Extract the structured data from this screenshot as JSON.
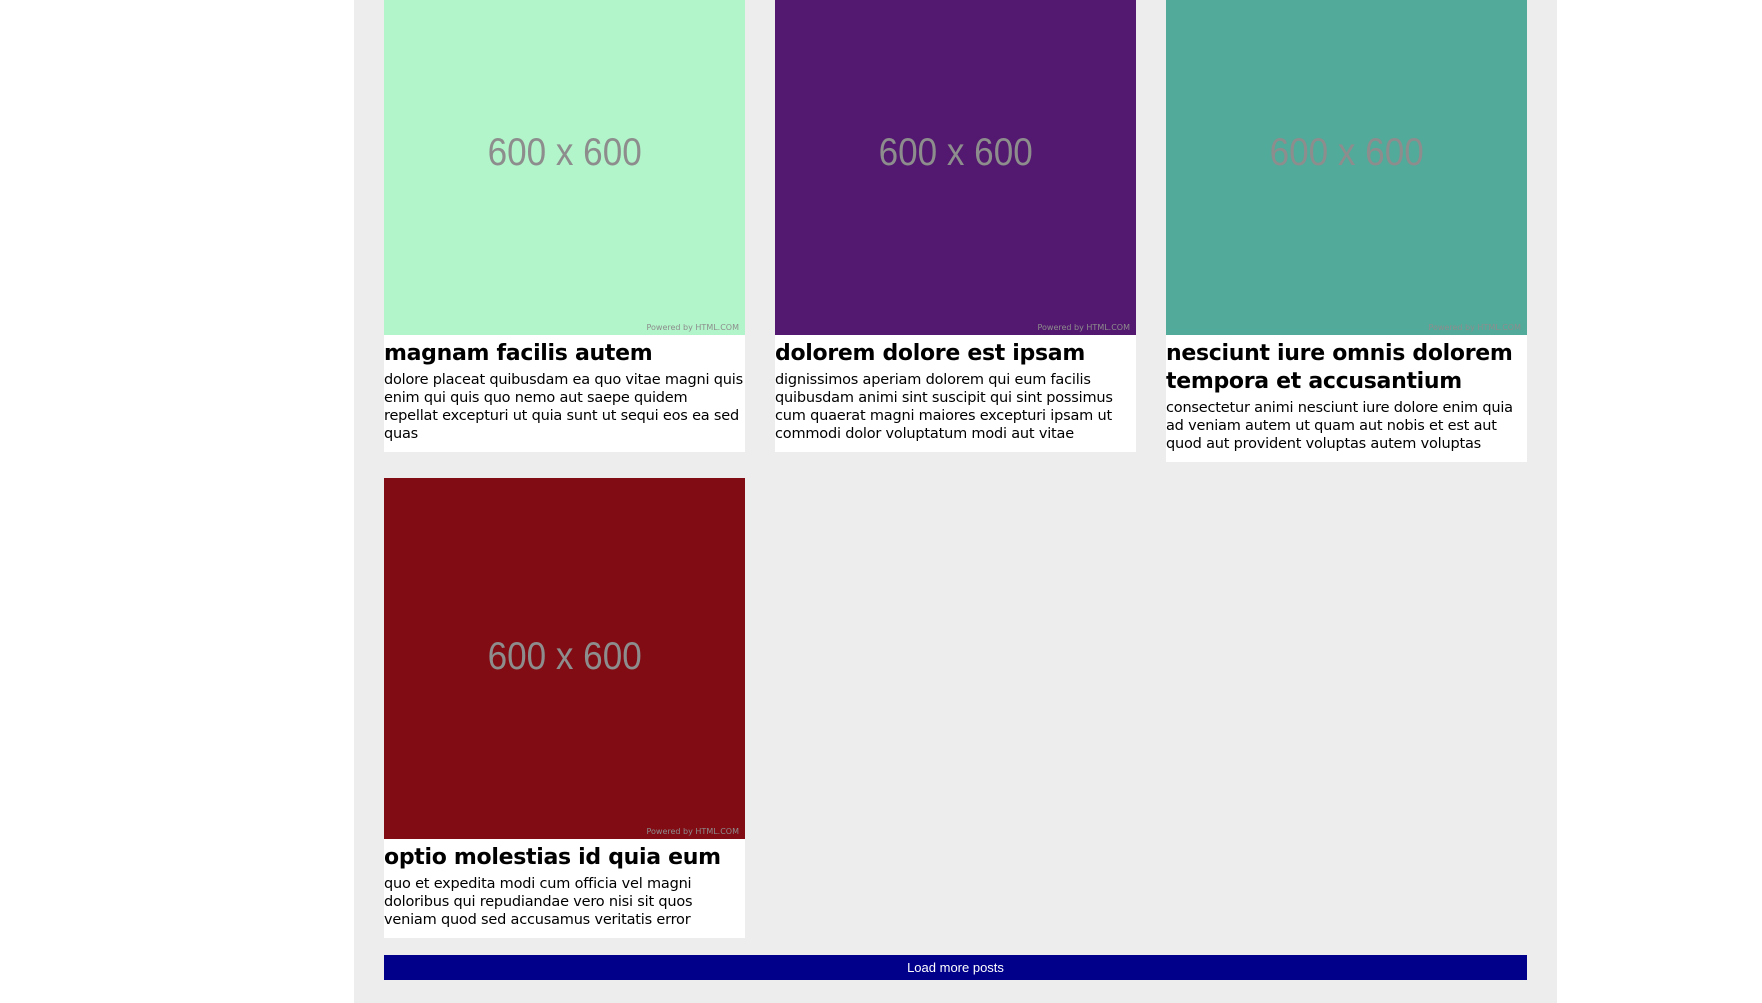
{
  "posts": [
    {
      "image_label": "600 x 600",
      "image_credit": "Powered by HTML.COM",
      "image_color": "#b2f5ca",
      "title": "magnam facilis autem",
      "body": "dolore placeat quibusdam ea quo vitae magni quis enim qui quis quo nemo aut saepe quidem repellat excepturi ut quia sunt ut sequi eos ea sed quas"
    },
    {
      "image_label": "600 x 600",
      "image_credit": "Powered by HTML.COM",
      "image_color": "#53186f",
      "title": "dolorem dolore est ipsam",
      "body": "dignissimos aperiam dolorem qui eum facilis quibusdam animi sint suscipit qui sint possimus cum quaerat magni maiores excepturi ipsam ut commodi dolor voluptatum modi aut vitae"
    },
    {
      "image_label": "600 x 600",
      "image_credit": "Powered by HTML.COM",
      "image_color": "#51aa9a",
      "title": "nesciunt iure omnis dolorem tempora et accusantium",
      "body": "consectetur animi nesciunt iure dolore enim quia ad veniam autem ut quam aut nobis et est aut quod aut provident voluptas autem voluptas"
    },
    {
      "image_label": "600 x 600",
      "image_credit": "Powered by HTML.COM",
      "image_color": "#820c14",
      "title": "optio molestias id quia eum",
      "body": "quo et expedita modi cum officia vel magni doloribus qui repudiandae vero nisi sit quos veniam quod sed accusamus veritatis error"
    }
  ],
  "load_more_label": "Load more posts"
}
